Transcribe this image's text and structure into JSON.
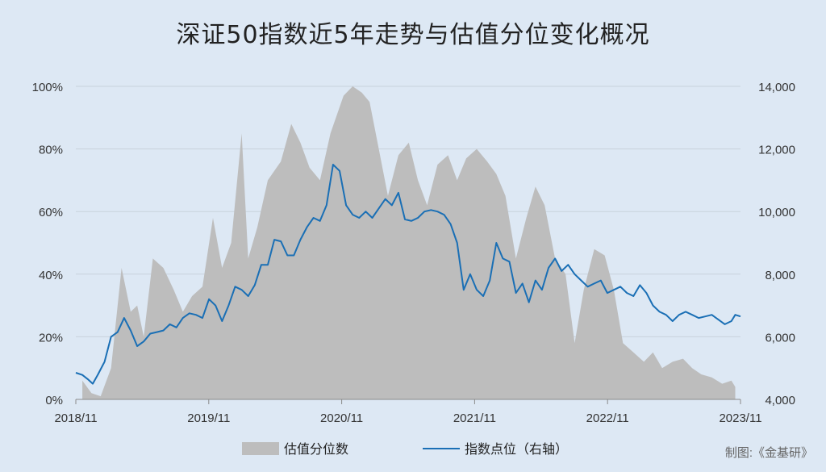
{
  "chart_data": {
    "type": "area",
    "title": "深证50指数近5年走势与估值分位变化概况",
    "credit": "制图:《金基研》",
    "x_ticks": [
      "2018/11",
      "2019/11",
      "2020/11",
      "2021/11",
      "2022/11",
      "2023/11"
    ],
    "y_left_ticks": [
      "0%",
      "20%",
      "40%",
      "60%",
      "80%",
      "100%"
    ],
    "y_right_ticks": [
      "4,000",
      "6,000",
      "8,000",
      "10,000",
      "12,000",
      "14,000"
    ],
    "y_left_range": [
      0,
      100
    ],
    "y_right_range": [
      4000,
      14000
    ],
    "grid": true,
    "legend_position": "bottom",
    "colors": {
      "area": "#bdbdbd",
      "line": "#1a6fb5",
      "background": "#dde8f4",
      "grid": "#c8d2dc"
    },
    "series": [
      {
        "name": "估值分位数",
        "type": "area",
        "axis": "left",
        "x": [
          2018.88,
          2018.95,
          2019.02,
          2019.1,
          2019.18,
          2019.25,
          2019.3,
          2019.35,
          2019.42,
          2019.5,
          2019.58,
          2019.65,
          2019.72,
          2019.8,
          2019.88,
          2019.95,
          2020.02,
          2020.1,
          2020.15,
          2020.22,
          2020.3,
          2020.4,
          2020.48,
          2020.55,
          2020.62,
          2020.7,
          2020.78,
          2020.88,
          2020.95,
          2021.02,
          2021.08,
          2021.15,
          2021.22,
          2021.3,
          2021.38,
          2021.45,
          2021.52,
          2021.6,
          2021.68,
          2021.75,
          2021.82,
          2021.9,
          2021.98,
          2022.05,
          2022.12,
          2022.2,
          2022.28,
          2022.35,
          2022.42,
          2022.5,
          2022.58,
          2022.65,
          2022.72,
          2022.8,
          2022.88,
          2022.95,
          2023.02,
          2023.1,
          2023.18,
          2023.25,
          2023.32,
          2023.4,
          2023.48,
          2023.55,
          2023.62,
          2023.7,
          2023.78,
          2023.85,
          2023.88
        ],
        "values": [
          6,
          2,
          1,
          10,
          42,
          28,
          30,
          20,
          45,
          42,
          35,
          28,
          33,
          36,
          58,
          42,
          50,
          85,
          45,
          55,
          70,
          76,
          88,
          82,
          74,
          70,
          85,
          97,
          100,
          98,
          95,
          80,
          65,
          78,
          82,
          70,
          62,
          75,
          78,
          70,
          77,
          80,
          76,
          72,
          65,
          45,
          58,
          68,
          62,
          45,
          40,
          18,
          35,
          48,
          46,
          35,
          18,
          15,
          12,
          15,
          10,
          12,
          13,
          10,
          8,
          7,
          5,
          6,
          4
        ]
      },
      {
        "name": "指数点位（右轴）",
        "type": "line",
        "axis": "right",
        "x": [
          2018.83,
          2018.88,
          2018.92,
          2018.96,
          2019.0,
          2019.05,
          2019.1,
          2019.15,
          2019.2,
          2019.25,
          2019.3,
          2019.35,
          2019.4,
          2019.45,
          2019.5,
          2019.55,
          2019.6,
          2019.65,
          2019.7,
          2019.75,
          2019.8,
          2019.85,
          2019.9,
          2019.95,
          2020.0,
          2020.05,
          2020.1,
          2020.15,
          2020.2,
          2020.25,
          2020.3,
          2020.35,
          2020.4,
          2020.45,
          2020.5,
          2020.55,
          2020.6,
          2020.65,
          2020.7,
          2020.75,
          2020.8,
          2020.85,
          2020.9,
          2020.95,
          2021.0,
          2021.05,
          2021.1,
          2021.15,
          2021.2,
          2021.25,
          2021.3,
          2021.35,
          2021.4,
          2021.45,
          2021.5,
          2021.55,
          2021.6,
          2021.65,
          2021.7,
          2021.75,
          2021.8,
          2021.85,
          2021.9,
          2021.95,
          2022.0,
          2022.05,
          2022.1,
          2022.15,
          2022.2,
          2022.25,
          2022.3,
          2022.35,
          2022.4,
          2022.45,
          2022.5,
          2022.55,
          2022.6,
          2022.65,
          2022.7,
          2022.75,
          2022.8,
          2022.85,
          2022.9,
          2022.95,
          2023.0,
          2023.05,
          2023.1,
          2023.15,
          2023.2,
          2023.25,
          2023.3,
          2023.35,
          2023.4,
          2023.45,
          2023.5,
          2023.55,
          2023.6,
          2023.65,
          2023.7,
          2023.75,
          2023.8,
          2023.85,
          2023.88,
          2023.92
        ],
        "values": [
          4850,
          4780,
          4650,
          4500,
          4800,
          5200,
          6000,
          6150,
          6600,
          6200,
          5700,
          5850,
          6100,
          6150,
          6200,
          6400,
          6300,
          6600,
          6750,
          6700,
          6600,
          7200,
          7000,
          6500,
          7000,
          7600,
          7500,
          7300,
          7650,
          8300,
          8300,
          9100,
          9050,
          8600,
          8600,
          9100,
          9500,
          9800,
          9700,
          10200,
          11500,
          11300,
          10200,
          9900,
          9800,
          10000,
          9800,
          10100,
          10400,
          10200,
          10600,
          9750,
          9700,
          9800,
          10000,
          10050,
          10000,
          9900,
          9600,
          9000,
          7500,
          8000,
          7500,
          7300,
          7800,
          9000,
          8500,
          8400,
          7400,
          7700,
          7100,
          7800,
          7500,
          8200,
          8500,
          8100,
          8300,
          8000,
          7800,
          7600,
          7700,
          7800,
          7400,
          7500,
          7600,
          7400,
          7300,
          7650,
          7400,
          7000,
          6800,
          6700,
          6500,
          6700,
          6800,
          6700,
          6600,
          6650,
          6700,
          6550,
          6400,
          6500,
          6700,
          6650
        ]
      }
    ]
  }
}
